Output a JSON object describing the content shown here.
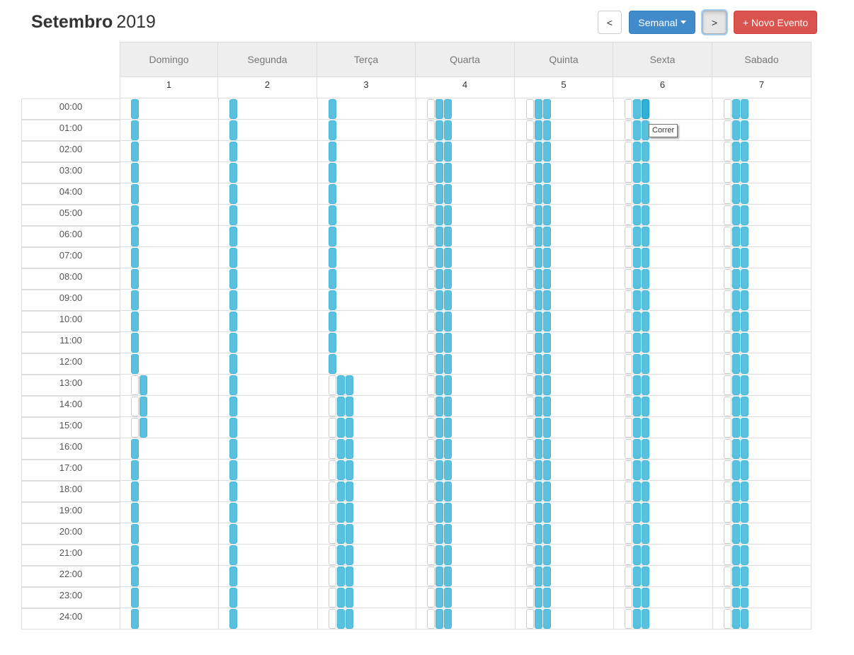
{
  "header": {
    "month": "Setembro",
    "year": "2019",
    "prev_label": "<",
    "next_label": ">",
    "view_label": "Semanal",
    "new_event_label": "+ Novo Evento"
  },
  "days": [
    {
      "name": "Domingo",
      "date": "1"
    },
    {
      "name": "Segunda",
      "date": "2"
    },
    {
      "name": "Terça",
      "date": "3"
    },
    {
      "name": "Quarta",
      "date": "4"
    },
    {
      "name": "Quinta",
      "date": "5"
    },
    {
      "name": "Sexta",
      "date": "6"
    },
    {
      "name": "Sabado",
      "date": "7"
    }
  ],
  "hours": [
    "00:00",
    "01:00",
    "02:00",
    "03:00",
    "04:00",
    "05:00",
    "06:00",
    "07:00",
    "08:00",
    "09:00",
    "10:00",
    "11:00",
    "12:00",
    "13:00",
    "14:00",
    "15:00",
    "16:00",
    "17:00",
    "18:00",
    "19:00",
    "20:00",
    "21:00",
    "22:00",
    "23:00",
    "24:00"
  ],
  "tooltip": {
    "text": "Correr"
  },
  "colors": {
    "event": "#5bc0de",
    "event_border": "#46b8da",
    "new_event_button": "#d9534f",
    "view_button": "#428bca"
  }
}
